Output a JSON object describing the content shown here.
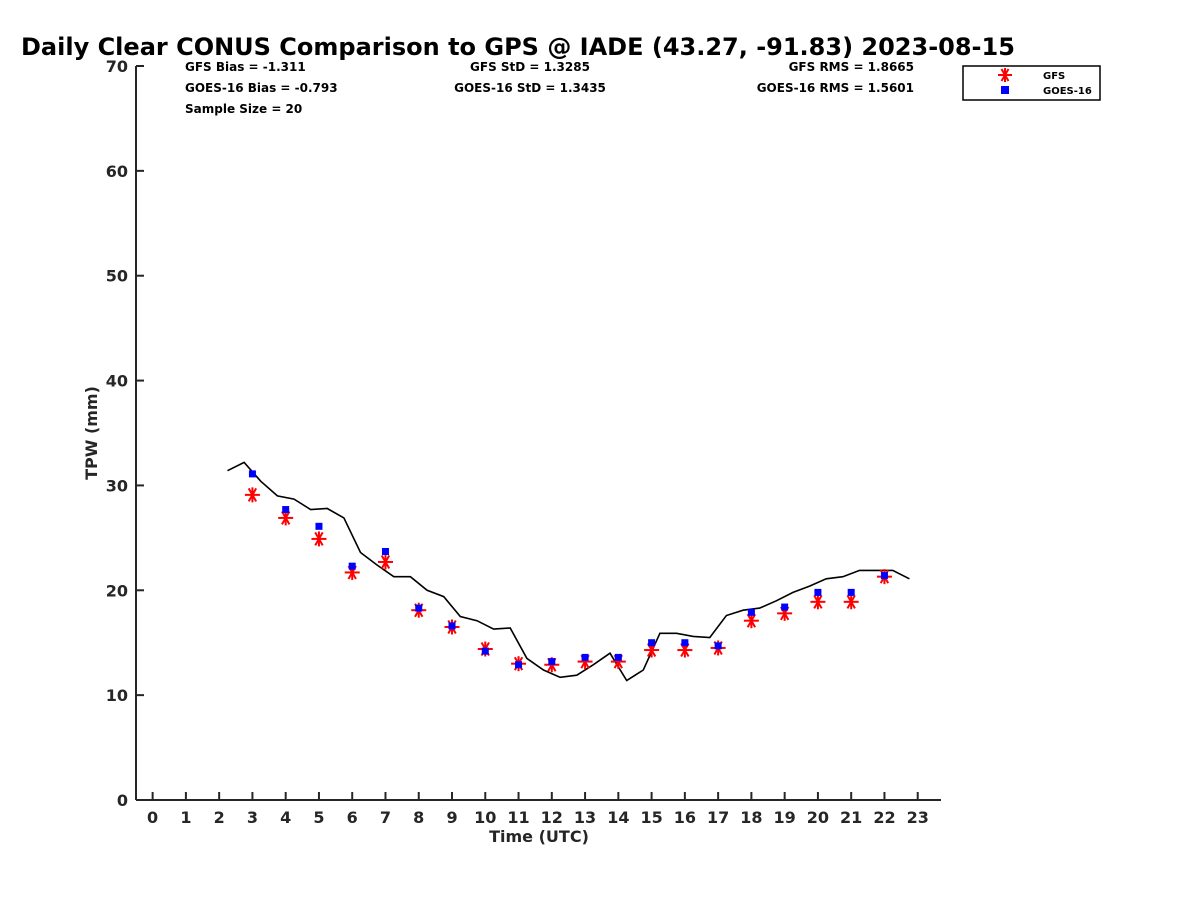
{
  "chart_data": {
    "type": "line",
    "title": "Daily Clear CONUS Comparison to GPS @ IADE (43.27, -91.83) 2023-08-15",
    "xlabel": "Time (UTC)",
    "ylabel": "TPW (mm)",
    "xlim": [
      -0.5,
      23.7
    ],
    "ylim": [
      0,
      70
    ],
    "xticks": [
      "0",
      "1",
      "2",
      "3",
      "4",
      "5",
      "6",
      "7",
      "8",
      "9",
      "10",
      "11",
      "12",
      "13",
      "14",
      "15",
      "16",
      "17",
      "18",
      "19",
      "20",
      "21",
      "22",
      "23"
    ],
    "yticks": [
      "0",
      "10",
      "20",
      "30",
      "40",
      "50",
      "60",
      "70"
    ],
    "grid": false,
    "legend_position": "top-right",
    "stats": {
      "gfs_bias": "GFS Bias = -1.311",
      "goes_bias": "GOES-16 Bias = -0.793",
      "sample_size": "Sample Size = 20",
      "gfs_std": "GFS StD = 1.3285",
      "goes_std": "GOES-16 StD = 1.3435",
      "gfs_rms": "GFS RMS = 1.8665",
      "goes_rms": "GOES-16 RMS = 1.5601"
    },
    "series": [
      {
        "key": "gps",
        "marker": "line",
        "color": "#000000",
        "x": [
          2.25,
          2.75,
          3.0,
          3.25,
          3.75,
          4.25,
          4.75,
          5.25,
          5.75,
          6.25,
          6.75,
          7.25,
          7.75,
          8.25,
          8.75,
          9.25,
          9.75,
          10.25,
          10.75,
          11.25,
          11.75,
          12.25,
          12.75,
          13.25,
          13.75,
          14.25,
          14.75,
          15.25,
          15.75,
          16.25,
          16.75,
          17.25,
          17.75,
          18.25,
          18.75,
          19.25,
          19.75,
          20.25,
          20.75,
          21.25,
          21.75,
          22.25,
          22.75
        ],
        "values": [
          31.4,
          32.2,
          31.3,
          30.4,
          29.0,
          28.7,
          27.7,
          27.8,
          26.9,
          23.6,
          22.4,
          21.3,
          21.3,
          20.0,
          19.4,
          17.5,
          17.1,
          16.3,
          16.4,
          13.5,
          12.4,
          11.7,
          11.9,
          12.9,
          14.0,
          11.4,
          12.4,
          15.9,
          15.9,
          15.6,
          15.5,
          17.6,
          18.1,
          18.3,
          19.0,
          19.8,
          20.4,
          21.1,
          21.3,
          21.9,
          21.9,
          21.9,
          21.1
        ]
      },
      {
        "key": "gfs",
        "name": "GFS",
        "marker": "asterisk",
        "color": "#ff0000",
        "x": [
          3,
          4,
          5,
          6,
          7,
          8,
          9,
          10,
          11,
          12,
          13,
          14,
          15,
          16,
          17,
          18,
          19,
          20,
          21,
          22
        ],
        "values": [
          29.1,
          26.9,
          24.9,
          21.7,
          22.7,
          18.1,
          16.5,
          14.4,
          13.0,
          12.9,
          13.2,
          13.2,
          14.3,
          14.3,
          14.5,
          17.1,
          17.8,
          18.9,
          18.9,
          21.3
        ]
      },
      {
        "key": "goes",
        "name": "GOES-16",
        "marker": "square",
        "color": "#0000ff",
        "x": [
          3,
          4,
          5,
          6,
          7,
          8,
          9,
          10,
          11,
          12,
          13,
          14,
          15,
          16,
          17,
          18,
          19,
          20,
          21,
          22
        ],
        "values": [
          31.1,
          27.7,
          26.1,
          22.3,
          23.7,
          18.3,
          16.6,
          14.2,
          12.9,
          13.2,
          13.6,
          13.6,
          15.0,
          15.0,
          14.7,
          17.9,
          18.4,
          19.8,
          19.8,
          21.4
        ]
      }
    ]
  }
}
